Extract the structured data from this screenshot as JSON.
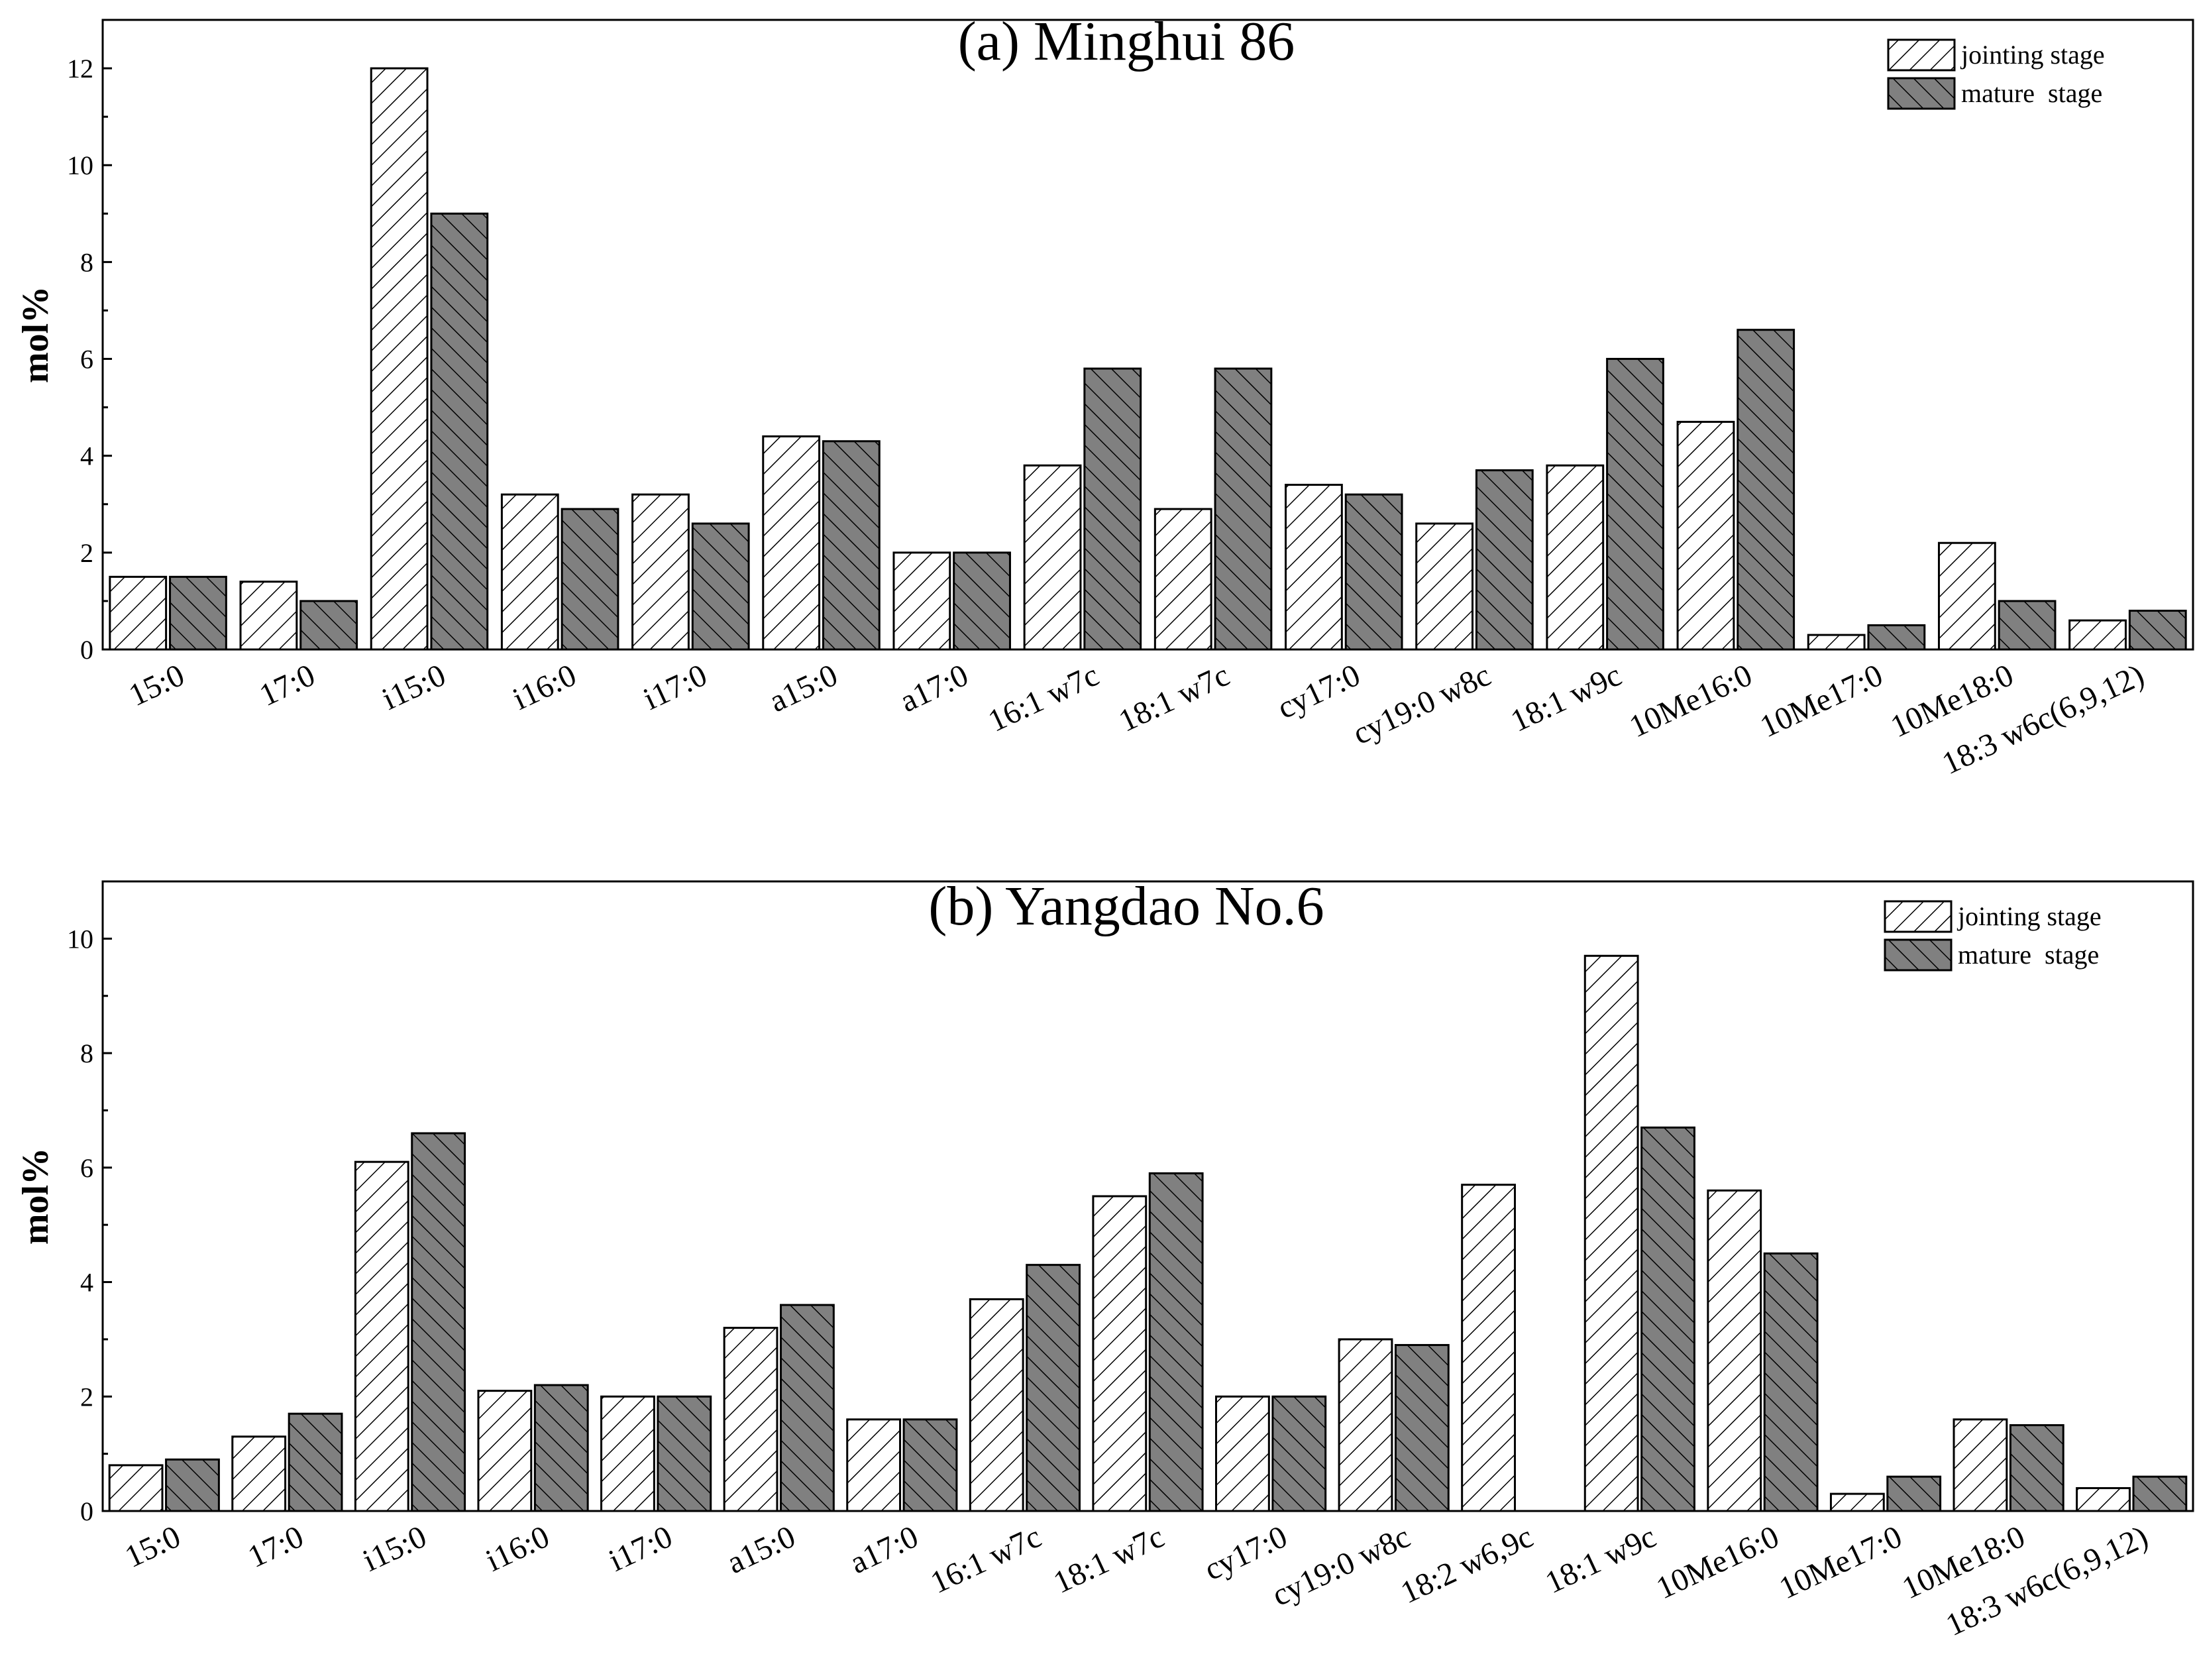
{
  "chart_data": [
    {
      "type": "bar",
      "title": "(a) Minghui 86",
      "xlabel": "",
      "ylabel": "mol%",
      "ylim": [
        0,
        13
      ],
      "yticks": [
        0,
        2,
        4,
        6,
        8,
        10,
        12
      ],
      "legend_position": "top-right",
      "categories": [
        "15:0",
        "17:0",
        "i15:0",
        "i16:0",
        "i17:0",
        "a15:0",
        "a17:0",
        "16:1 w7c",
        "18:1 w7c",
        "cy17:0",
        "cy19:0 w8c",
        "18:1 w9c",
        "10Me16:0",
        "10Me17:0",
        "10Me18:0",
        "18:3 w6c(6,9,12)"
      ],
      "series": [
        {
          "name": "jointing stage",
          "fill": "#ffffff",
          "values": [
            1.5,
            1.4,
            12.0,
            3.2,
            3.2,
            4.4,
            2.0,
            3.8,
            2.9,
            3.4,
            2.6,
            3.8,
            4.7,
            0.3,
            2.2,
            0.6
          ]
        },
        {
          "name": "mature  stage",
          "fill": "#808080",
          "values": [
            1.5,
            1.0,
            9.0,
            2.9,
            2.6,
            4.3,
            2.0,
            5.8,
            5.8,
            3.2,
            3.7,
            6.0,
            6.6,
            0.5,
            1.0,
            0.8
          ]
        }
      ]
    },
    {
      "type": "bar",
      "title": "(b) Yangdao No.6",
      "xlabel": "",
      "ylabel": "mol%",
      "ylim": [
        0,
        11
      ],
      "yticks": [
        0,
        2,
        4,
        6,
        8,
        10
      ],
      "legend_position": "top-right",
      "categories": [
        "15:0",
        "17:0",
        "i15:0",
        "i16:0",
        "i17:0",
        "a15:0",
        "a17:0",
        "16:1 w7c",
        "18:1 w7c",
        "cy17:0",
        "cy19:0 w8c",
        "18:2 w6,9c",
        "18:1 w9c",
        "10Me16:0",
        "10Me17:0",
        "10Me18:0",
        "18:3 w6c(6,9,12)"
      ],
      "series": [
        {
          "name": "jointing stage",
          "fill": "#ffffff",
          "values": [
            0.8,
            1.3,
            6.1,
            2.1,
            2.0,
            3.2,
            1.6,
            3.7,
            5.5,
            2.0,
            3.0,
            5.7,
            9.7,
            5.6,
            0.3,
            1.6,
            0.4
          ]
        },
        {
          "name": "mature  stage",
          "fill": "#808080",
          "values": [
            0.9,
            1.7,
            6.6,
            2.2,
            2.0,
            3.6,
            1.6,
            4.3,
            5.9,
            2.0,
            2.9,
            0,
            6.7,
            4.5,
            0.6,
            1.5,
            0.6
          ]
        }
      ]
    }
  ]
}
